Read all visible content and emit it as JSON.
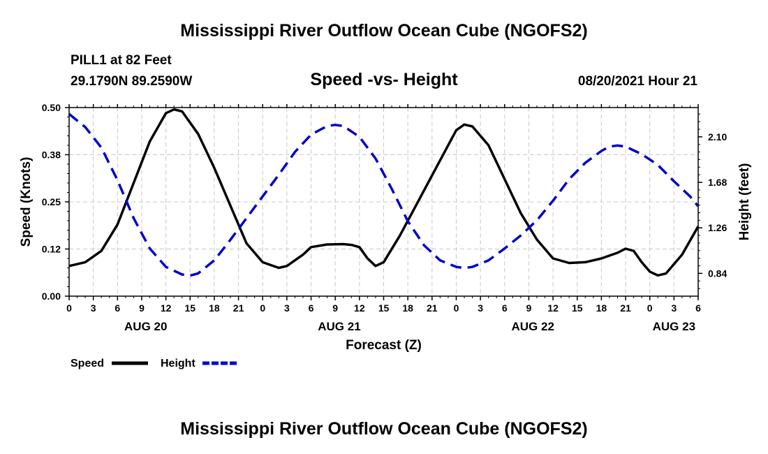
{
  "header": {
    "title": "Mississippi River Outflow Ocean Cube (NGOFS2)",
    "station": "PILL1 at 82 Feet",
    "coords": "29.1790N  89.2590W",
    "subtitle": "Speed -vs- Height",
    "datetime": "08/20/2021 Hour 21"
  },
  "footer": {
    "title": "Mississippi River Outflow Ocean Cube (NGOFS2)"
  },
  "chart_data": {
    "type": "line",
    "title": "Speed -vs- Height",
    "xlabel": "Forecast (Z)",
    "ylabel": "Speed (Knots)",
    "y2label": "Height (feet)",
    "xlim": [
      0,
      78
    ],
    "ylim": [
      0,
      0.5
    ],
    "y2lim": [
      0.63,
      2.37
    ],
    "grid": true,
    "x_tick_labels": [
      "0",
      "3",
      "6",
      "9",
      "12",
      "15",
      "18",
      "21",
      "0",
      "3",
      "6",
      "9",
      "12",
      "15",
      "18",
      "21",
      "0",
      "3",
      "6",
      "9",
      "12",
      "15",
      "18",
      "21",
      "0",
      "3",
      "6"
    ],
    "y_ticks": [
      {
        "value": 0.0,
        "label": "0.00"
      },
      {
        "value": 0.125,
        "label": "0.12"
      },
      {
        "value": 0.25,
        "label": "0.25"
      },
      {
        "value": 0.375,
        "label": "0.38"
      },
      {
        "value": 0.5,
        "label": "0.50"
      }
    ],
    "y2_ticks": [
      {
        "value": 0.84,
        "label": "0.84"
      },
      {
        "value": 1.26,
        "label": "1.26"
      },
      {
        "value": 1.68,
        "label": "1.68"
      },
      {
        "value": 2.1,
        "label": "2.10"
      }
    ],
    "day_labels": [
      {
        "x": 9.5,
        "label": "AUG 20"
      },
      {
        "x": 33.5,
        "label": "AUG 21"
      },
      {
        "x": 57.5,
        "label": "AUG 22"
      },
      {
        "x": 75,
        "label": "AUG 23"
      }
    ],
    "legend": {
      "position": "bottom-left"
    },
    "series": [
      {
        "name": "Speed",
        "axis": "left",
        "color": "#000000",
        "dash": "solid",
        "points": [
          [
            0,
            0.08
          ],
          [
            2,
            0.09
          ],
          [
            4,
            0.12
          ],
          [
            6,
            0.19
          ],
          [
            8,
            0.3
          ],
          [
            10,
            0.41
          ],
          [
            12,
            0.485
          ],
          [
            13,
            0.495
          ],
          [
            14,
            0.49
          ],
          [
            16,
            0.43
          ],
          [
            18,
            0.34
          ],
          [
            20,
            0.24
          ],
          [
            22,
            0.14
          ],
          [
            24,
            0.09
          ],
          [
            26,
            0.075
          ],
          [
            27,
            0.08
          ],
          [
            29,
            0.11
          ],
          [
            30,
            0.13
          ],
          [
            32,
            0.137
          ],
          [
            34,
            0.138
          ],
          [
            35,
            0.136
          ],
          [
            36,
            0.13
          ],
          [
            37,
            0.1
          ],
          [
            38,
            0.08
          ],
          [
            39,
            0.09
          ],
          [
            41,
            0.16
          ],
          [
            43,
            0.24
          ],
          [
            45,
            0.32
          ],
          [
            47,
            0.4
          ],
          [
            48,
            0.44
          ],
          [
            49,
            0.455
          ],
          [
            50,
            0.45
          ],
          [
            52,
            0.4
          ],
          [
            54,
            0.31
          ],
          [
            56,
            0.22
          ],
          [
            58,
            0.15
          ],
          [
            60,
            0.1
          ],
          [
            62,
            0.088
          ],
          [
            64,
            0.09
          ],
          [
            66,
            0.1
          ],
          [
            68,
            0.115
          ],
          [
            69,
            0.126
          ],
          [
            70,
            0.12
          ],
          [
            71,
            0.09
          ],
          [
            72,
            0.065
          ],
          [
            73,
            0.055
          ],
          [
            74,
            0.06
          ],
          [
            76,
            0.11
          ],
          [
            78,
            0.185
          ]
        ]
      },
      {
        "name": "Height",
        "axis": "right",
        "color": "#0000cc",
        "dash": "dashed",
        "points": [
          [
            0,
            2.31
          ],
          [
            2,
            2.19
          ],
          [
            4,
            2.0
          ],
          [
            6,
            1.7
          ],
          [
            8,
            1.35
          ],
          [
            10,
            1.07
          ],
          [
            12,
            0.9
          ],
          [
            14,
            0.83
          ],
          [
            15,
            0.82
          ],
          [
            16,
            0.84
          ],
          [
            18,
            0.96
          ],
          [
            20,
            1.15
          ],
          [
            22,
            1.35
          ],
          [
            24,
            1.55
          ],
          [
            26,
            1.75
          ],
          [
            28,
            1.96
          ],
          [
            30,
            2.12
          ],
          [
            32,
            2.2
          ],
          [
            33,
            2.21
          ],
          [
            34,
            2.2
          ],
          [
            36,
            2.1
          ],
          [
            38,
            1.9
          ],
          [
            40,
            1.62
          ],
          [
            42,
            1.32
          ],
          [
            44,
            1.1
          ],
          [
            46,
            0.96
          ],
          [
            48,
            0.9
          ],
          [
            49,
            0.89
          ],
          [
            50,
            0.9
          ],
          [
            52,
            0.96
          ],
          [
            54,
            1.07
          ],
          [
            56,
            1.19
          ],
          [
            58,
            1.33
          ],
          [
            60,
            1.51
          ],
          [
            62,
            1.71
          ],
          [
            64,
            1.86
          ],
          [
            66,
            1.97
          ],
          [
            67,
            2.01
          ],
          [
            68,
            2.02
          ],
          [
            69,
            2.01
          ],
          [
            71,
            1.94
          ],
          [
            73,
            1.84
          ],
          [
            75,
            1.69
          ],
          [
            77,
            1.55
          ],
          [
            78,
            1.46
          ]
        ]
      }
    ]
  }
}
